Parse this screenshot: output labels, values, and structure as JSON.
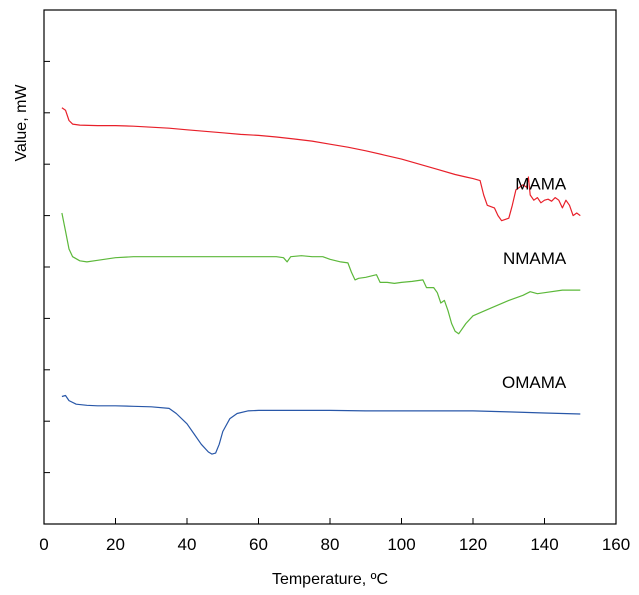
{
  "chart_data": {
    "type": "line",
    "title": "",
    "xlabel": "Temperature, ºC",
    "ylabel": "Value, mW",
    "xlim": [
      0,
      160
    ],
    "ylim": [
      0,
      10
    ],
    "xticks": [
      0,
      20,
      40,
      60,
      80,
      100,
      120,
      140,
      160
    ],
    "y_tick_labels_shown": false,
    "grid": false,
    "legend": "series labels placed beside curves",
    "series": [
      {
        "name": "MAMA",
        "color": "#e8202a",
        "points": [
          [
            5,
            8.1
          ],
          [
            6,
            8.05
          ],
          [
            7,
            7.85
          ],
          [
            8,
            7.78
          ],
          [
            10,
            7.76
          ],
          [
            15,
            7.75
          ],
          [
            20,
            7.75
          ],
          [
            25,
            7.74
          ],
          [
            30,
            7.72
          ],
          [
            35,
            7.7
          ],
          [
            40,
            7.67
          ],
          [
            45,
            7.64
          ],
          [
            50,
            7.61
          ],
          [
            55,
            7.58
          ],
          [
            60,
            7.56
          ],
          [
            65,
            7.53
          ],
          [
            70,
            7.49
          ],
          [
            75,
            7.45
          ],
          [
            80,
            7.39
          ],
          [
            85,
            7.33
          ],
          [
            90,
            7.26
          ],
          [
            95,
            7.18
          ],
          [
            100,
            7.1
          ],
          [
            105,
            7.0
          ],
          [
            110,
            6.9
          ],
          [
            115,
            6.8
          ],
          [
            118,
            6.75
          ],
          [
            120,
            6.72
          ],
          [
            122,
            6.68
          ],
          [
            123,
            6.4
          ],
          [
            124,
            6.2
          ],
          [
            126,
            6.15
          ],
          [
            127,
            6.0
          ],
          [
            128,
            5.9
          ],
          [
            130,
            5.95
          ],
          [
            131,
            6.2
          ],
          [
            132,
            6.5
          ],
          [
            133,
            6.55
          ],
          [
            134,
            6.6
          ],
          [
            135,
            6.55
          ],
          [
            135.5,
            6.75
          ],
          [
            136,
            6.4
          ],
          [
            137,
            6.3
          ],
          [
            138,
            6.35
          ],
          [
            139,
            6.25
          ],
          [
            140,
            6.3
          ],
          [
            141,
            6.32
          ],
          [
            142,
            6.28
          ],
          [
            143,
            6.35
          ],
          [
            144,
            6.3
          ],
          [
            145,
            6.15
          ],
          [
            146,
            6.3
          ],
          [
            147,
            6.2
          ],
          [
            148,
            6.0
          ],
          [
            149,
            6.05
          ],
          [
            150,
            6.0
          ]
        ]
      },
      {
        "name": "NMAMA",
        "color": "#5cb83a",
        "points": [
          [
            5,
            6.05
          ],
          [
            6,
            5.7
          ],
          [
            7,
            5.35
          ],
          [
            8,
            5.2
          ],
          [
            10,
            5.12
          ],
          [
            12,
            5.1
          ],
          [
            15,
            5.13
          ],
          [
            20,
            5.18
          ],
          [
            25,
            5.2
          ],
          [
            30,
            5.2
          ],
          [
            40,
            5.2
          ],
          [
            50,
            5.2
          ],
          [
            60,
            5.2
          ],
          [
            65,
            5.2
          ],
          [
            67,
            5.18
          ],
          [
            68,
            5.1
          ],
          [
            69,
            5.2
          ],
          [
            72,
            5.22
          ],
          [
            75,
            5.2
          ],
          [
            78,
            5.2
          ],
          [
            80,
            5.15
          ],
          [
            83,
            5.1
          ],
          [
            85,
            5.08
          ],
          [
            86,
            4.9
          ],
          [
            87,
            4.75
          ],
          [
            88,
            4.78
          ],
          [
            90,
            4.8
          ],
          [
            93,
            4.85
          ],
          [
            94,
            4.7
          ],
          [
            96,
            4.7
          ],
          [
            98,
            4.68
          ],
          [
            100,
            4.7
          ],
          [
            103,
            4.72
          ],
          [
            106,
            4.75
          ],
          [
            107,
            4.6
          ],
          [
            109,
            4.6
          ],
          [
            110,
            4.5
          ],
          [
            111,
            4.3
          ],
          [
            112,
            4.35
          ],
          [
            113,
            4.15
          ],
          [
            114,
            3.9
          ],
          [
            115,
            3.75
          ],
          [
            116,
            3.7
          ],
          [
            118,
            3.9
          ],
          [
            120,
            4.05
          ],
          [
            125,
            4.2
          ],
          [
            130,
            4.35
          ],
          [
            134,
            4.45
          ],
          [
            136,
            4.52
          ],
          [
            138,
            4.48
          ],
          [
            140,
            4.5
          ],
          [
            145,
            4.55
          ],
          [
            150,
            4.55
          ]
        ]
      },
      {
        "name": "OMAMA",
        "color": "#2857a8",
        "points": [
          [
            5,
            2.48
          ],
          [
            6,
            2.5
          ],
          [
            7,
            2.4
          ],
          [
            9,
            2.33
          ],
          [
            12,
            2.31
          ],
          [
            15,
            2.3
          ],
          [
            20,
            2.3
          ],
          [
            25,
            2.29
          ],
          [
            30,
            2.28
          ],
          [
            35,
            2.25
          ],
          [
            37,
            2.15
          ],
          [
            40,
            1.95
          ],
          [
            42,
            1.75
          ],
          [
            44,
            1.55
          ],
          [
            46,
            1.4
          ],
          [
            47,
            1.36
          ],
          [
            48,
            1.38
          ],
          [
            49,
            1.55
          ],
          [
            50,
            1.8
          ],
          [
            52,
            2.05
          ],
          [
            54,
            2.15
          ],
          [
            57,
            2.2
          ],
          [
            60,
            2.21
          ],
          [
            70,
            2.21
          ],
          [
            80,
            2.21
          ],
          [
            90,
            2.2
          ],
          [
            100,
            2.2
          ],
          [
            110,
            2.2
          ],
          [
            120,
            2.2
          ],
          [
            130,
            2.18
          ],
          [
            140,
            2.16
          ],
          [
            150,
            2.14
          ]
        ]
      }
    ]
  }
}
